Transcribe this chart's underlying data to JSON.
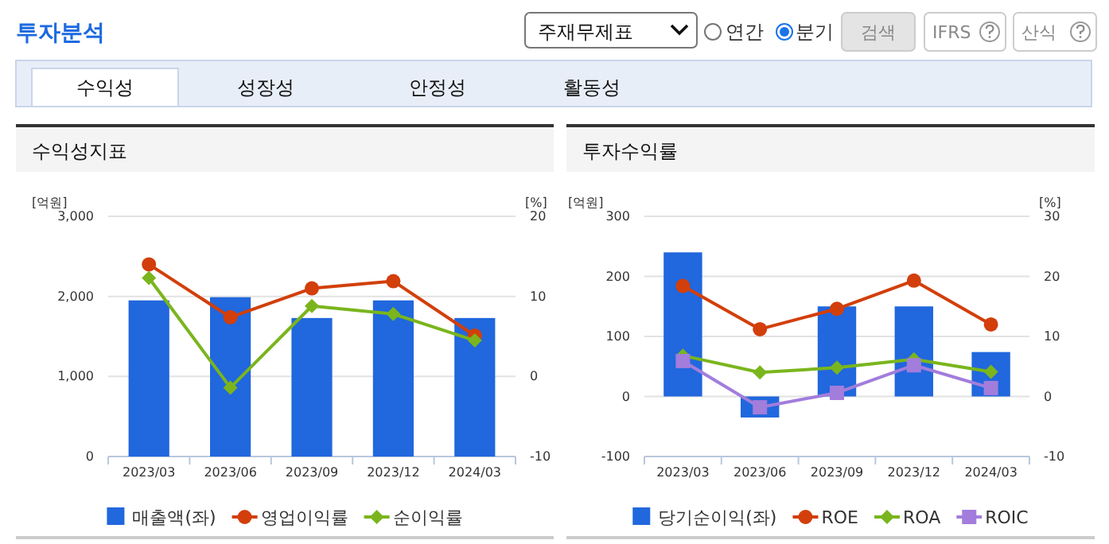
{
  "chart_data": [
    {
      "type": "bar",
      "title": "수익성지표",
      "ylabel": "[억원]",
      "y2label": "[%]",
      "annotations": [
        "투자분석",
        "주재무제표",
        "연간",
        "분기",
        "검색",
        "IFRS",
        "산식",
        "수익성",
        "성장성",
        "안정성",
        "활동성"
      ],
      "categories": [
        "2023/03",
        "2023/06",
        "2023/09",
        "2023/12",
        "2024/03"
      ],
      "series": [
        {
          "name": "매출액(좌)",
          "color": "#2167dd",
          "values": [
            1950,
            1990,
            1730,
            1950,
            1730
          ]
        },
        {
          "name": "영업이익률",
          "type": "line",
          "axis": "y2",
          "marker": "circle",
          "color": "#d23f0b",
          "values": [
            14.0,
            7.4,
            11.0,
            11.9,
            5.1
          ]
        },
        {
          "name": "순이익률",
          "type": "line",
          "axis": "y2",
          "marker": "diamond",
          "color": "#7ab51d",
          "values": [
            12.3,
            -1.4,
            8.8,
            7.8,
            4.5
          ]
        }
      ],
      "ylim": [
        0,
        3000
      ],
      "yticks": [
        {
          "value": 0,
          "label": "0"
        },
        {
          "value": 1000,
          "label": "1,000"
        },
        {
          "value": 2000,
          "label": "2,000"
        },
        {
          "value": 3000,
          "label": "3,000"
        }
      ],
      "y2lim": [
        -10,
        20
      ],
      "y2ticks": [
        -10,
        0,
        10,
        20
      ],
      "grid": "y",
      "legend": "bottom"
    },
    {
      "type": "bar",
      "title": "투자수익률",
      "ylabel": "[억원]",
      "y2label": "[%]",
      "categories": [
        "2023/03",
        "2023/06",
        "2023/09",
        "2023/12",
        "2024/03"
      ],
      "series": [
        {
          "name": "당기순이익(좌)",
          "color": "#2167dd",
          "values": [
            240,
            -35,
            150,
            150,
            74
          ]
        },
        {
          "name": "ROE",
          "type": "line",
          "axis": "y2",
          "marker": "circle",
          "color": "#d23f0b",
          "values": [
            18.4,
            11.2,
            14.6,
            19.3,
            12.0
          ]
        },
        {
          "name": "ROA",
          "type": "line",
          "axis": "y2",
          "marker": "diamond",
          "color": "#7ab51d",
          "values": [
            6.8,
            4.0,
            4.8,
            6.2,
            4.1
          ]
        },
        {
          "name": "ROIC",
          "type": "line",
          "axis": "y2",
          "marker": "square",
          "color": "#a27ddc",
          "values": [
            5.9,
            -1.8,
            0.6,
            5.2,
            1.4
          ]
        }
      ],
      "ylim": [
        -100,
        300
      ],
      "yticks": [
        -100,
        0,
        100,
        200,
        300
      ],
      "y2lim": [
        -10,
        30
      ],
      "y2ticks": [
        -10,
        0,
        10,
        20,
        30
      ],
      "grid": "y",
      "legend": "bottom"
    }
  ]
}
